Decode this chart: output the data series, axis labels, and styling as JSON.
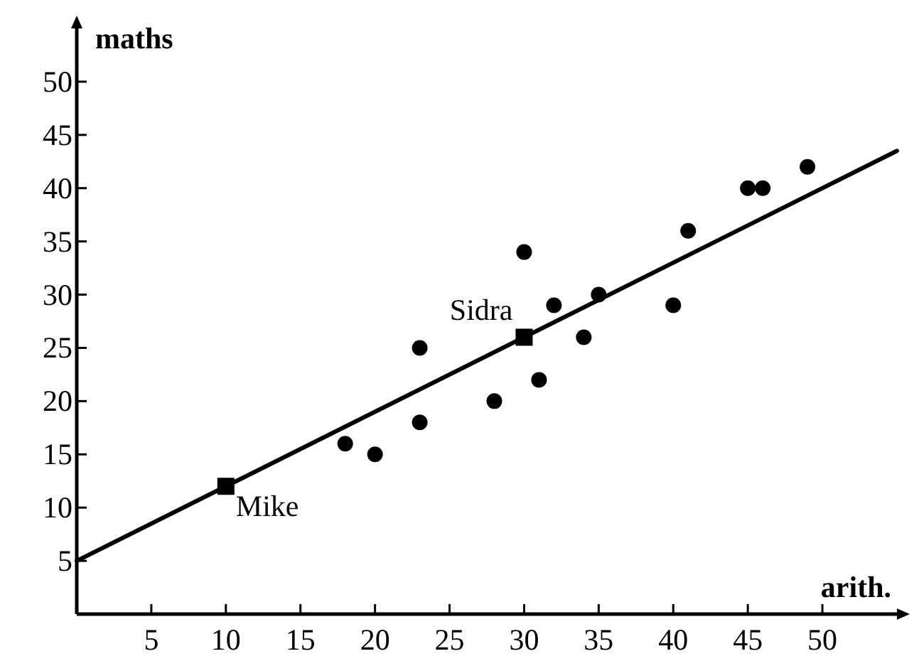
{
  "chart_data": {
    "type": "scatter",
    "xlabel": "arith.",
    "ylabel": "maths",
    "xlim": [
      0,
      55
    ],
    "ylim": [
      0,
      55
    ],
    "xticks": [
      5,
      10,
      15,
      20,
      25,
      30,
      35,
      40,
      45,
      50
    ],
    "yticks": [
      5,
      10,
      15,
      20,
      25,
      30,
      35,
      40,
      45,
      50
    ],
    "grid": false,
    "series": [
      {
        "type": "line",
        "color": "#000000",
        "x": [
          0,
          55
        ],
        "values": [
          5,
          43.5
        ],
        "marker": "none",
        "line_style": "solid"
      },
      {
        "color": "#000000",
        "x": [
          18,
          20,
          23,
          23,
          28,
          30,
          31,
          32,
          34,
          35,
          40,
          41,
          45,
          46,
          49
        ],
        "values": [
          16,
          15,
          25,
          18,
          20,
          34,
          22,
          29,
          26,
          30,
          29,
          36,
          40,
          40,
          42
        ],
        "marker": "circle"
      },
      {
        "color": "#000000",
        "x": [
          10,
          30
        ],
        "values": [
          12,
          26
        ],
        "marker": "square"
      }
    ],
    "annotations": [
      {
        "text": "Mike",
        "x": 10,
        "y": 12
      },
      {
        "text": "Sidra",
        "x": 30,
        "y": 26
      }
    ]
  }
}
